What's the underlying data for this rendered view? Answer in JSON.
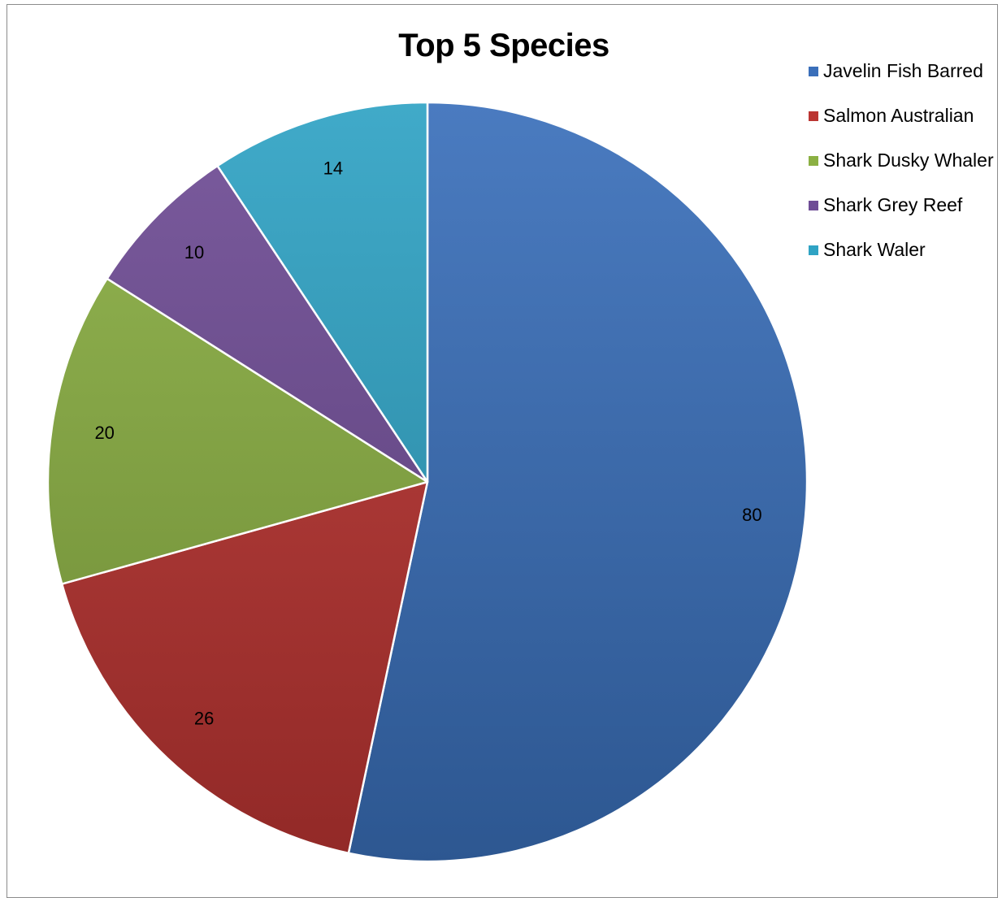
{
  "chart_data": {
    "type": "pie",
    "title": "Top 5 Species",
    "categories": [
      "Javelin Fish Barred",
      "Salmon Australian",
      "Shark Dusky Whaler",
      "Shark Grey Reef",
      "Shark Waler"
    ],
    "values": [
      80,
      26,
      20,
      10,
      14
    ],
    "colors": [
      "#3a6fba",
      "#bb3532",
      "#8bb043",
      "#6f4d96",
      "#2fa3c4"
    ],
    "data_labels": [
      "80",
      "26",
      "20",
      "10",
      "14"
    ],
    "start_angle_deg": 0,
    "direction": "clockwise",
    "legend_position": "top-right"
  }
}
